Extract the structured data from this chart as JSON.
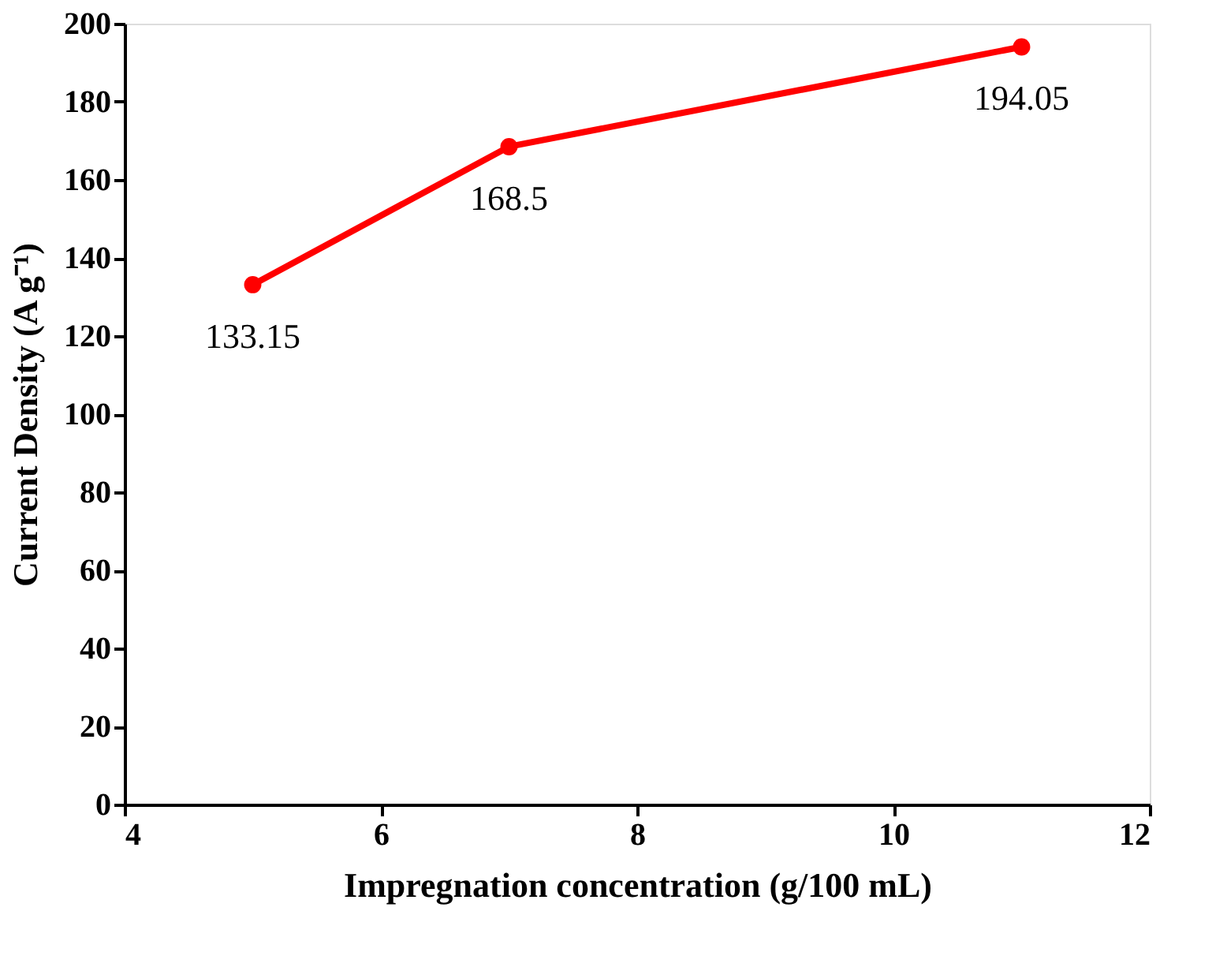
{
  "chart_data": {
    "type": "line",
    "xlabel": "Impregnation concentration (g/100 mL)",
    "ylabel": "Current Density (A g⁻¹)",
    "x": [
      5,
      7,
      11
    ],
    "series": [
      {
        "color": "#ff0000",
        "values": [
          133.15,
          168.5,
          194.05
        ]
      }
    ],
    "xlim": [
      4,
      12
    ],
    "xticks": [
      4,
      6,
      8,
      10,
      12
    ],
    "ylim": [
      0,
      200
    ],
    "yticks": [
      0,
      20,
      40,
      60,
      80,
      100,
      120,
      140,
      160,
      180,
      200
    ],
    "marker": "circle",
    "line_style": "solid",
    "data_labels": true,
    "grid": false,
    "legend": false
  }
}
